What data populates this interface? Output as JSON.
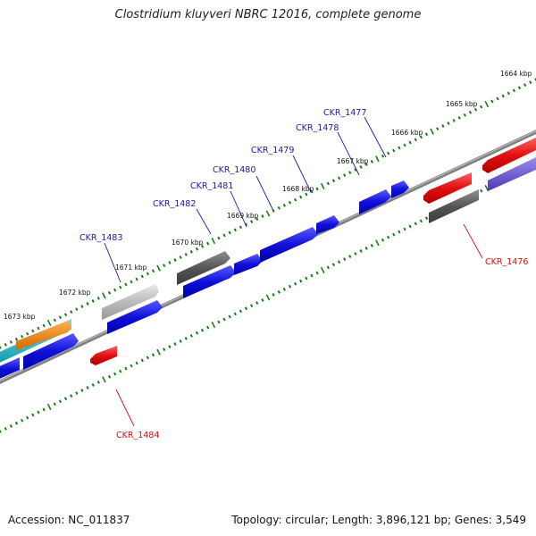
{
  "title": "Clostridium kluyveri NBRC 12016, complete genome",
  "footer": {
    "accession_label": "Accession:",
    "accession": "NC_011837",
    "topology_text": "Topology: circular; Length: 3,896,121 bp; Genes: 3,549"
  },
  "kbp_ticks": [
    "1664 kbp",
    "1665 kbp",
    "1666 kbp",
    "1667 kbp",
    "1668 kbp",
    "1669 kbp",
    "1670 kbp",
    "1671 kbp",
    "1672 kbp",
    "1673 kbp"
  ],
  "gene_labels": [
    {
      "name": "CKR_1477",
      "strand": "plus"
    },
    {
      "name": "CKR_1478",
      "strand": "plus"
    },
    {
      "name": "CKR_1479",
      "strand": "plus"
    },
    {
      "name": "CKR_1480",
      "strand": "plus"
    },
    {
      "name": "CKR_1481",
      "strand": "plus"
    },
    {
      "name": "CKR_1482",
      "strand": "plus"
    },
    {
      "name": "CKR_1483",
      "strand": "plus"
    },
    {
      "name": "CKR_1476",
      "strand": "minus"
    },
    {
      "name": "CKR_1484",
      "strand": "minus"
    }
  ],
  "colors": {
    "cds_plus": "#1010d8",
    "cds_minus": "#e01010",
    "pseudo_dark": "#555555",
    "pseudo_light": "#bbbbbb",
    "cyan": "#1ab8c8",
    "orange": "#f08a10",
    "purple": "#6a5ad0",
    "backbone": "#808080",
    "tick": "#1a7a1a"
  }
}
